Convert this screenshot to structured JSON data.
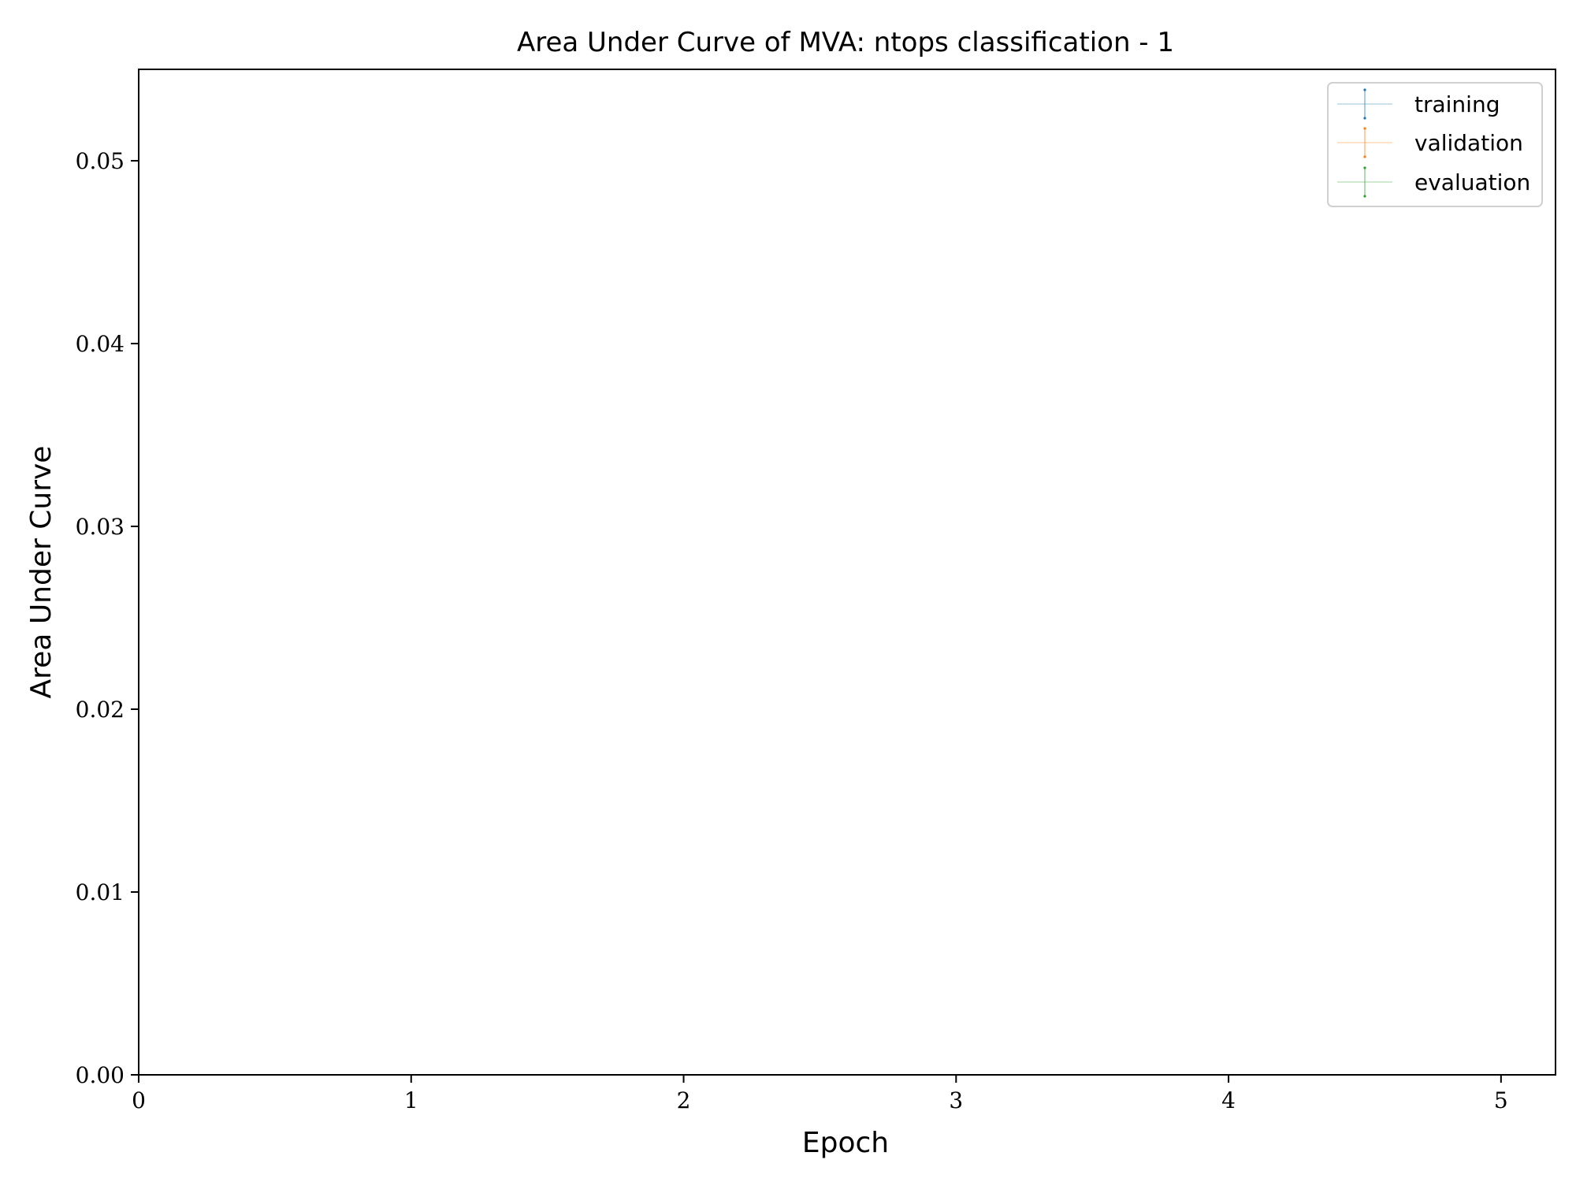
{
  "chart_data": {
    "type": "line",
    "title": "Area Under Curve of MVA: ntops classification - 1",
    "xlabel": "Epoch",
    "ylabel": "Area Under Curve",
    "xlim": [
      0,
      5.2
    ],
    "ylim": [
      0,
      0.055
    ],
    "xticks": [
      0,
      1,
      2,
      3,
      4,
      5
    ],
    "xtick_labels": [
      "0",
      "1",
      "2",
      "3",
      "4",
      "5"
    ],
    "yticks": [
      0.0,
      0.01,
      0.02,
      0.03,
      0.04,
      0.05
    ],
    "ytick_labels": [
      "0.00",
      "0.01",
      "0.02",
      "0.03",
      "0.04",
      "0.05"
    ],
    "grid": false,
    "legend_position": "top-right",
    "series": [
      {
        "name": "training",
        "color": "#1f77b4",
        "x": [],
        "y": []
      },
      {
        "name": "validation",
        "color": "#ff7f0e",
        "x": [],
        "y": []
      },
      {
        "name": "evaluation",
        "color": "#2ca02c",
        "x": [],
        "y": []
      }
    ]
  }
}
